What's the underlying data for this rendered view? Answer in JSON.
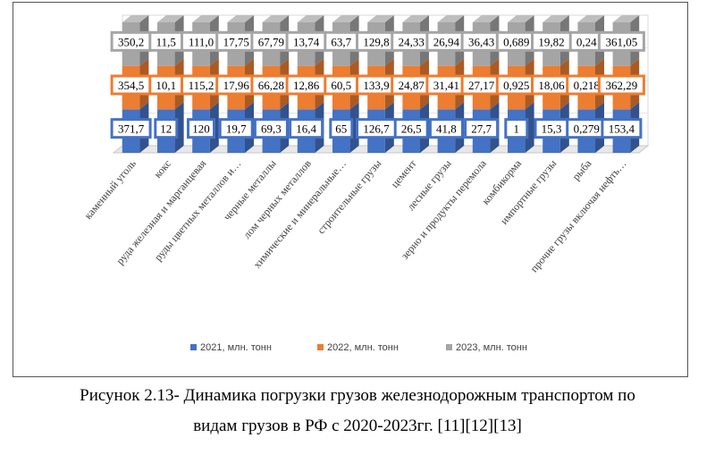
{
  "chart_data": {
    "type": "bar",
    "stacked": true,
    "three_d": true,
    "categories": [
      "каменный уголь",
      "кокс",
      "руда железная и марганцевая",
      "руды цветных металлов и…",
      "черные металлы",
      "лом черных металлов",
      "химические и минеральные…",
      "строительные грузы",
      "цемент",
      "лесные грузы",
      "зерно и продукты перемола",
      "комбикорма",
      "импортные грузы",
      "рыба",
      "прочие грузы включая нефть…"
    ],
    "series": [
      {
        "name": "2021, млн. тонн",
        "color": "#4472C4",
        "values": [
          371.7,
          12,
          120,
          19.7,
          69.3,
          16.4,
          65,
          126.7,
          26.5,
          41.8,
          27.7,
          1,
          15.3,
          0.279,
          153.4
        ],
        "labels": [
          "371,7",
          "12",
          "120",
          "19,7",
          "69,3",
          "16,4",
          "65",
          "126,7",
          "26,5",
          "41,8",
          "27,7",
          "1",
          "15,3",
          "0,279",
          "153,4"
        ]
      },
      {
        "name": "2022, млн. тонн",
        "color": "#ED7D31",
        "values": [
          354.5,
          10.1,
          115.2,
          17.96,
          66.28,
          12.86,
          60.5,
          133.9,
          24.87,
          31.41,
          27.17,
          0.925,
          18.06,
          0.218,
          362.29
        ],
        "labels": [
          "354,5",
          "10,1",
          "115,2",
          "17,96",
          "66,28",
          "12,86",
          "60,5",
          "133,9",
          "24,87",
          "31,41",
          "27,17",
          "0,925",
          "18,06",
          "0,218",
          "362,29"
        ]
      },
      {
        "name": "2023, млн. тонн",
        "color": "#A5A5A5",
        "values": [
          350.2,
          11.5,
          111.0,
          17.75,
          67.79,
          13.74,
          63.7,
          129.8,
          24.33,
          26.94,
          36.43,
          0.689,
          19.82,
          0.24,
          361.05
        ],
        "labels": [
          "350,2",
          "11,5",
          "111,0",
          "17,75",
          "67,79",
          "13,74",
          "63,7",
          "129,8",
          "24,33",
          "26,94",
          "36,43",
          "0,689",
          "19,82",
          "0,24",
          "361,05"
        ]
      }
    ],
    "legend_position": "bottom",
    "grid": true
  },
  "caption": {
    "line1": "Рисунок 2.13- Динамика погрузки грузов железнодорожным транспортом по",
    "line2": "видам грузов в РФ с 2020-2023гг. [11][12][13]"
  }
}
